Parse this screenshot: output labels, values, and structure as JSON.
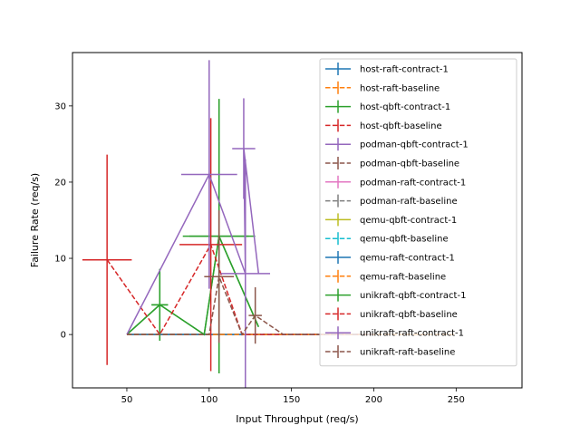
{
  "chart_data": {
    "type": "line",
    "xlabel": "Input Throughput (req/s)",
    "ylabel": "Failure Rate (req/s)",
    "xlim": [
      17,
      290
    ],
    "ylim": [
      -7,
      37
    ],
    "xticks": [
      50,
      100,
      150,
      200,
      250
    ],
    "yticks": [
      0,
      10,
      20,
      30
    ],
    "legend_position": "top-right",
    "series": [
      {
        "name": "host-raft-contract-1",
        "color": "#1f77b4",
        "dashed": false,
        "points": [
          [
            50,
            0,
            0,
            0
          ],
          [
            100,
            0,
            0,
            0
          ],
          [
            150,
            0,
            0,
            0
          ],
          [
            200,
            0,
            0,
            0
          ]
        ]
      },
      {
        "name": "host-raft-baseline",
        "color": "#ff7f0e",
        "dashed": true,
        "points": [
          [
            50,
            0,
            0,
            0
          ],
          [
            100,
            0,
            0,
            0
          ],
          [
            150,
            0,
            0,
            0
          ],
          [
            200,
            0,
            0,
            0
          ],
          [
            250,
            0,
            0,
            0
          ]
        ]
      },
      {
        "name": "host-qbft-contract-1",
        "color": "#2ca02c",
        "dashed": false,
        "points": [
          [
            50,
            0,
            0,
            0
          ],
          [
            70,
            3.9,
            5,
            4.7
          ],
          [
            97,
            0,
            0,
            0
          ],
          [
            106,
            12.9,
            22,
            18
          ],
          [
            130,
            1,
            0,
            0
          ]
        ]
      },
      {
        "name": "host-qbft-baseline",
        "color": "#d62728",
        "dashed": true,
        "points": [
          [
            50,
            0,
            0,
            0
          ],
          [
            100,
            0,
            0,
            0
          ],
          [
            150,
            0,
            0,
            0
          ],
          [
            200,
            0,
            0,
            0
          ]
        ]
      },
      {
        "name": "podman-qbft-contract-1",
        "color": "#9467bd",
        "dashed": false,
        "points": [
          [
            50,
            0,
            0,
            0
          ],
          [
            100,
            0,
            0,
            0
          ]
        ]
      },
      {
        "name": "podman-qbft-baseline",
        "color": "#8c564b",
        "dashed": true,
        "points": [
          [
            50,
            0,
            0,
            0
          ],
          [
            100,
            0,
            0,
            0
          ]
        ]
      },
      {
        "name": "podman-raft-contract-1",
        "color": "#e377c2",
        "dashed": false,
        "points": [
          [
            50,
            0,
            0,
            0
          ],
          [
            100,
            0,
            0,
            0
          ]
        ]
      },
      {
        "name": "podman-raft-baseline",
        "color": "#7f7f7f",
        "dashed": true,
        "points": [
          [
            50,
            0,
            0,
            0
          ],
          [
            100,
            0,
            0,
            0
          ]
        ]
      },
      {
        "name": "qemu-qbft-contract-1",
        "color": "#bcbd22",
        "dashed": false,
        "points": [
          [
            50,
            0,
            0,
            0
          ],
          [
            100,
            0,
            0,
            0
          ]
        ]
      },
      {
        "name": "qemu-qbft-baseline",
        "color": "#17becf",
        "dashed": true,
        "points": [
          [
            50,
            0,
            0,
            0
          ],
          [
            100,
            0,
            0,
            0
          ],
          [
            150,
            0,
            0,
            0
          ],
          [
            200,
            0,
            0,
            0
          ]
        ]
      },
      {
        "name": "qemu-raft-contract-1",
        "color": "#1f77b4",
        "dashed": false,
        "points": [
          [
            50,
            0,
            0,
            0
          ],
          [
            100,
            0,
            0,
            0
          ],
          [
            150,
            0,
            0,
            0
          ],
          [
            200,
            0,
            0,
            0
          ]
        ]
      },
      {
        "name": "qemu-raft-baseline",
        "color": "#ff7f0e",
        "dashed": true,
        "points": [
          [
            50,
            0,
            0,
            0
          ],
          [
            100,
            0,
            0,
            0
          ],
          [
            150,
            0,
            0,
            0
          ],
          [
            200,
            0,
            0,
            0
          ],
          [
            250,
            0,
            0,
            0
          ]
        ]
      },
      {
        "name": "unikraft-qbft-contract-1",
        "color": "#2ca02c",
        "dashed": false,
        "points": [
          [
            50,
            0,
            0,
            0
          ],
          [
            70,
            3.9,
            5,
            4.7
          ],
          [
            97,
            0,
            0,
            0
          ],
          [
            106,
            12.9,
            18,
            18
          ],
          [
            130,
            1,
            0,
            0
          ]
        ]
      },
      {
        "name": "unikraft-qbft-baseline",
        "color": "#d62728",
        "dashed": true,
        "points": [
          [
            38,
            9.8,
            15,
            13.8
          ],
          [
            70,
            0,
            0,
            0
          ],
          [
            101,
            11.8,
            19,
            16.6
          ],
          [
            120,
            0,
            0,
            0
          ],
          [
            150,
            0,
            0,
            0
          ],
          [
            200,
            0,
            0,
            0
          ]
        ]
      },
      {
        "name": "unikraft-raft-contract-1",
        "color": "#9467bd",
        "dashed": false,
        "points": [
          [
            50,
            0,
            0,
            0
          ],
          [
            100,
            21,
            17,
            15
          ],
          [
            122,
            8,
            15,
            15
          ],
          [
            121,
            24.4,
            7,
            6.6
          ],
          [
            130,
            8,
            0,
            0
          ]
        ]
      },
      {
        "name": "unikraft-raft-baseline",
        "color": "#8c564b",
        "dashed": true,
        "points": [
          [
            50,
            0,
            0,
            0
          ],
          [
            100,
            0,
            0,
            0
          ],
          [
            106,
            7.6,
            9,
            8.7
          ],
          [
            120,
            0,
            0,
            0
          ],
          [
            128,
            2.5,
            4,
            3.7
          ],
          [
            145,
            0,
            0,
            0
          ],
          [
            200,
            0,
            0,
            0
          ]
        ]
      }
    ]
  }
}
